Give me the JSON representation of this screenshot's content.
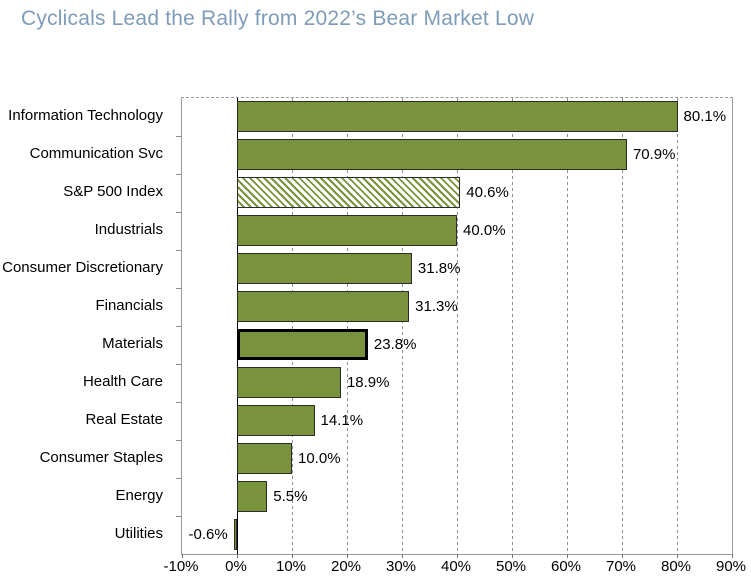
{
  "title": {
    "text": "Cyclicals Lead the Rally from 2022’s Bear Market Low",
    "color": "#7e9cb9"
  },
  "chart_data": {
    "type": "bar",
    "orientation": "horizontal",
    "title": "Cyclicals Lead the Rally from 2022’s Bear Market Low",
    "categories": [
      "Information Technology",
      "Communication Svc",
      "S&P 500 Index",
      "Industrials",
      "Consumer Discretionary",
      "Financials",
      "Materials",
      "Health Care",
      "Real Estate",
      "Consumer Staples",
      "Energy",
      "Utilities"
    ],
    "values": [
      80.1,
      70.9,
      40.6,
      40.0,
      31.8,
      31.3,
      23.8,
      18.9,
      14.1,
      10.0,
      5.5,
      -0.6
    ],
    "value_labels": [
      "80.1%",
      "70.9%",
      "40.6%",
      "40.0%",
      "31.8%",
      "31.3%",
      "23.8%",
      "18.9%",
      "14.1%",
      "10.0%",
      "5.5%",
      "-0.6%"
    ],
    "bar_styles": [
      "solid",
      "solid",
      "hatched",
      "solid",
      "solid",
      "solid",
      "thick-border",
      "solid",
      "solid",
      "solid",
      "solid",
      "solid"
    ],
    "xlabel": "",
    "ylabel": "",
    "xlim": [
      -10,
      90
    ],
    "x_ticks": [
      -10,
      0,
      10,
      20,
      30,
      40,
      50,
      60,
      70,
      80,
      90
    ],
    "x_tick_labels": [
      "-10%",
      "0%",
      "10%",
      "20%",
      "30%",
      "40%",
      "50%",
      "60%",
      "70%",
      "80%",
      "90%"
    ],
    "grid": "dashed vertical gridlines every 10%, solid black line at 0%",
    "legend": "none",
    "colors": {
      "bar_fill": "#79923c",
      "bar_border": "#2b2b2b",
      "emphasis_border": "#000000",
      "hatch_stripe": "#79923c",
      "hatch_background": "#ffffff",
      "gridline": "#8f8f8f",
      "zero_line": "#000000",
      "plot_border": "#9b9b9b",
      "title": "#7e9cb9",
      "text": "#000000"
    }
  }
}
